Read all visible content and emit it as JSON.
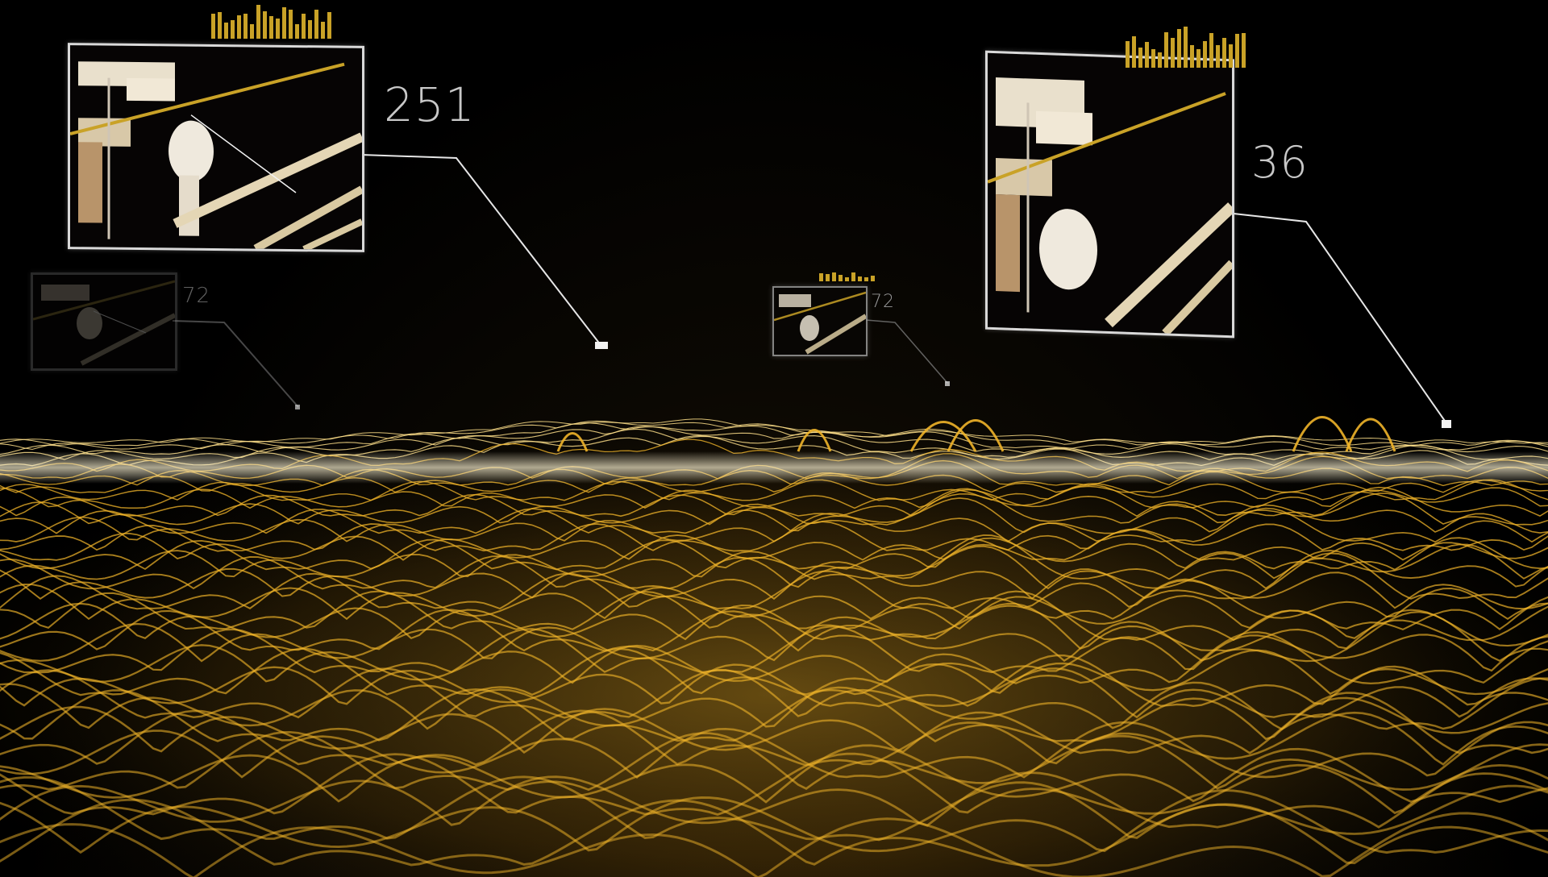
{
  "scene": {
    "accent": "#f0b429",
    "glow": "#ffe08a"
  },
  "callouts": [
    {
      "id": "large-left",
      "value": "251"
    },
    {
      "id": "large-right",
      "value": "36"
    },
    {
      "id": "small-left",
      "value": "72"
    },
    {
      "id": "small-center",
      "value": "72"
    }
  ],
  "icons": {
    "spectrum": "equalizer-bars-icon",
    "marker": "square-marker-icon"
  }
}
